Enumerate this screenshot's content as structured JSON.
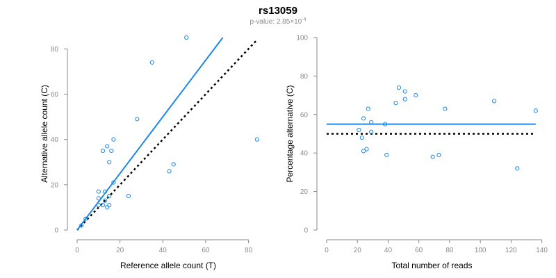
{
  "title": "rs13059",
  "subtitle": {
    "prefix": "p-value: 2.85",
    "times": "×10",
    "exponent": "-4"
  },
  "colors": {
    "points": "#1e88e5",
    "fit_line": "#1e88e5",
    "reference_line": "#000000",
    "axis": "#8a8a8a"
  },
  "chart_data": [
    {
      "type": "scatter",
      "xlabel": "Reference allele count (T)",
      "ylabel": "Alternative allele count (C)",
      "xlim": [
        0,
        85
      ],
      "ylim": [
        0,
        85
      ],
      "xticks": [
        0,
        20,
        40,
        60,
        80
      ],
      "yticks": [
        0,
        20,
        40,
        60,
        80
      ],
      "grid": false,
      "points": [
        [
          51,
          85
        ],
        [
          35,
          74
        ],
        [
          28,
          49
        ],
        [
          84,
          40
        ],
        [
          17,
          40
        ],
        [
          14,
          37
        ],
        [
          12,
          35
        ],
        [
          16,
          35
        ],
        [
          15,
          30
        ],
        [
          45,
          29
        ],
        [
          43,
          26
        ],
        [
          17,
          21
        ],
        [
          10,
          17
        ],
        [
          13,
          17
        ],
        [
          15,
          15
        ],
        [
          24,
          15
        ],
        [
          10,
          14
        ],
        [
          13,
          13
        ],
        [
          10,
          11
        ],
        [
          12,
          11
        ],
        [
          15,
          11
        ],
        [
          14,
          10
        ],
        [
          4,
          5
        ],
        [
          2,
          2
        ]
      ],
      "fit_line": {
        "x": [
          0,
          68
        ],
        "y": [
          0,
          85
        ]
      },
      "reference_line": {
        "x": [
          0,
          84
        ],
        "y": [
          0,
          84
        ]
      }
    },
    {
      "type": "scatter",
      "xlabel": "Total number of reads",
      "ylabel": "Percentage alternative (C)",
      "xlim": [
        0,
        137
      ],
      "ylim": [
        0,
        100
      ],
      "xticks": [
        0,
        20,
        40,
        60,
        80,
        100,
        120,
        140
      ],
      "yticks": [
        0,
        20,
        40,
        60,
        80,
        100
      ],
      "grid": false,
      "points": [
        [
          21,
          52
        ],
        [
          23,
          48
        ],
        [
          24,
          58
        ],
        [
          24,
          41
        ],
        [
          26,
          42
        ],
        [
          27,
          63
        ],
        [
          29,
          51
        ],
        [
          29,
          56
        ],
        [
          38,
          55
        ],
        [
          39,
          39
        ],
        [
          45,
          66
        ],
        [
          47,
          74
        ],
        [
          51,
          72
        ],
        [
          51,
          68
        ],
        [
          58,
          70
        ],
        [
          69,
          38
        ],
        [
          73,
          39
        ],
        [
          77,
          63
        ],
        [
          109,
          67
        ],
        [
          124,
          32
        ],
        [
          136,
          62
        ]
      ],
      "fit_line": {
        "x": [
          0,
          136
        ],
        "y": [
          55,
          55
        ]
      },
      "reference_line": {
        "x": [
          0,
          136
        ],
        "y": [
          50,
          50
        ]
      }
    }
  ]
}
